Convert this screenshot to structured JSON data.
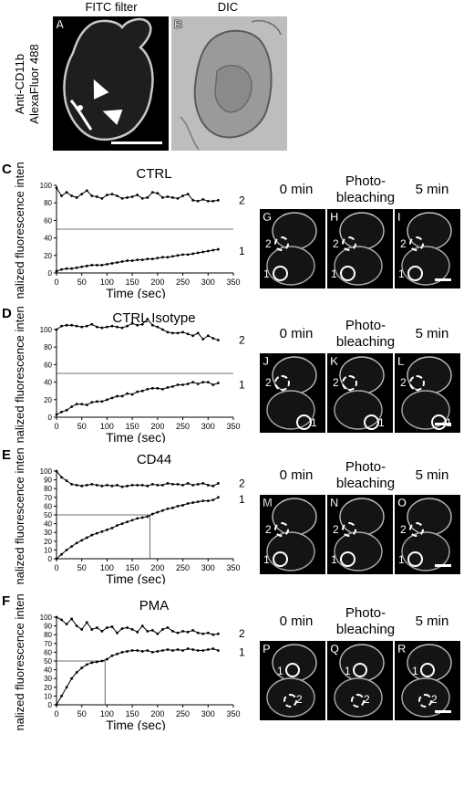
{
  "top": {
    "label_A": "A",
    "label_B": "B",
    "header_fitc": "FITC filter",
    "header_dic": "DIC",
    "side_label_line1": "Anti-CD11b",
    "side_label_line2": "AlexaFluor 488"
  },
  "headers": {
    "t0": "0 min",
    "pb_line1": "Photo-",
    "pb_line2": "bleaching",
    "t5": "5 min"
  },
  "roi_labels": {
    "one": "1",
    "two": "2"
  },
  "chart_data": [
    {
      "letter": "C",
      "type": "line",
      "title": "CTRL",
      "xlabel": "Time (sec)",
      "ylabel": "Normalized fluorescence intensity",
      "xlim": [
        0,
        350
      ],
      "ylim": [
        0,
        100
      ],
      "xticks": [
        0,
        50,
        100,
        150,
        200,
        250,
        300,
        350
      ],
      "yticks": [
        0,
        20,
        40,
        60,
        80,
        100
      ],
      "hline": 50,
      "vline": null,
      "series": [
        {
          "name": "2",
          "x": [
            0,
            10,
            20,
            30,
            40,
            50,
            60,
            70,
            80,
            90,
            100,
            110,
            120,
            130,
            140,
            150,
            160,
            170,
            180,
            190,
            200,
            210,
            220,
            230,
            240,
            250,
            260,
            270,
            280,
            290,
            300,
            310,
            320
          ],
          "values": [
            97,
            88,
            92,
            88,
            86,
            90,
            94,
            88,
            87,
            85,
            89,
            90,
            88,
            85,
            86,
            87,
            89,
            85,
            86,
            92,
            91,
            86,
            87,
            86,
            85,
            88,
            90,
            83,
            82,
            84,
            82,
            82,
            83
          ]
        },
        {
          "name": "1",
          "x": [
            0,
            10,
            20,
            30,
            40,
            50,
            60,
            70,
            80,
            90,
            100,
            110,
            120,
            130,
            140,
            150,
            160,
            170,
            180,
            190,
            200,
            210,
            220,
            230,
            240,
            250,
            260,
            270,
            280,
            290,
            300,
            310,
            320
          ],
          "values": [
            2,
            4,
            5,
            5,
            6,
            7,
            8,
            9,
            9,
            9,
            10,
            11,
            12,
            13,
            14,
            14,
            15,
            15,
            16,
            16,
            17,
            18,
            18,
            19,
            20,
            21,
            21,
            22,
            23,
            24,
            25,
            26,
            27
          ]
        }
      ]
    },
    {
      "letter": "D",
      "type": "line",
      "title": "CTRL Isotype",
      "xlabel": "Time (sec)",
      "ylabel": "Normalized fluorescence intensity",
      "xlim": [
        0,
        350
      ],
      "ylim": [
        0,
        100
      ],
      "xticks": [
        0,
        50,
        100,
        150,
        200,
        250,
        300,
        350
      ],
      "yticks": [
        0,
        20,
        40,
        60,
        80,
        100
      ],
      "hline": 50,
      "vline": null,
      "series": [
        {
          "name": "2",
          "x": [
            0,
            10,
            20,
            30,
            40,
            50,
            60,
            70,
            80,
            90,
            100,
            110,
            120,
            130,
            140,
            150,
            160,
            170,
            180,
            190,
            200,
            210,
            220,
            230,
            240,
            250,
            260,
            270,
            280,
            290,
            300,
            310,
            320
          ],
          "values": [
            100,
            104,
            105,
            105,
            104,
            103,
            104,
            106,
            103,
            102,
            103,
            104,
            103,
            102,
            104,
            107,
            105,
            106,
            112,
            105,
            103,
            100,
            97,
            96,
            96,
            97,
            95,
            93,
            96,
            89,
            93,
            90,
            88
          ]
        },
        {
          "name": "1",
          "x": [
            0,
            10,
            20,
            30,
            40,
            50,
            60,
            70,
            80,
            90,
            100,
            110,
            120,
            130,
            140,
            150,
            160,
            170,
            180,
            190,
            200,
            210,
            220,
            230,
            240,
            250,
            260,
            270,
            280,
            290,
            300,
            310,
            320
          ],
          "values": [
            3,
            6,
            8,
            12,
            15,
            15,
            14,
            17,
            18,
            18,
            20,
            22,
            24,
            24,
            27,
            26,
            29,
            30,
            32,
            33,
            33,
            32,
            34,
            35,
            37,
            37,
            38,
            40,
            38,
            40,
            40,
            37,
            39
          ]
        }
      ]
    },
    {
      "letter": "E",
      "type": "line",
      "title": "CD44",
      "xlabel": "Time (sec)",
      "ylabel": "Normalized fluorescence intensity",
      "xlim": [
        0,
        350
      ],
      "ylim": [
        0,
        100
      ],
      "xticks": [
        0,
        50,
        100,
        150,
        200,
        250,
        300,
        350
      ],
      "yticks": [
        0,
        10,
        20,
        30,
        40,
        50,
        60,
        70,
        80,
        90,
        100
      ],
      "hline": 50,
      "vline": 185,
      "series": [
        {
          "name": "2",
          "x": [
            0,
            10,
            20,
            30,
            40,
            50,
            60,
            70,
            80,
            90,
            100,
            110,
            120,
            130,
            140,
            150,
            160,
            170,
            180,
            190,
            200,
            210,
            220,
            230,
            240,
            250,
            260,
            270,
            280,
            290,
            300,
            310,
            320
          ],
          "values": [
            100,
            93,
            89,
            85,
            84,
            83,
            84,
            85,
            84,
            83,
            84,
            83,
            84,
            82,
            83,
            84,
            84,
            84,
            83,
            85,
            84,
            84,
            86,
            85,
            85,
            84,
            86,
            84,
            85,
            86,
            84,
            83,
            86
          ]
        },
        {
          "name": "1",
          "x": [
            0,
            10,
            20,
            30,
            40,
            50,
            60,
            70,
            80,
            90,
            100,
            110,
            120,
            130,
            140,
            150,
            160,
            170,
            180,
            190,
            200,
            210,
            220,
            230,
            240,
            250,
            260,
            270,
            280,
            290,
            300,
            310,
            320
          ],
          "values": [
            0,
            5,
            10,
            14,
            18,
            21,
            24,
            27,
            29,
            31,
            33,
            35,
            38,
            40,
            42,
            44,
            46,
            47,
            48,
            51,
            53,
            55,
            57,
            58,
            60,
            61,
            63,
            64,
            65,
            66,
            66,
            67,
            70
          ]
        }
      ]
    },
    {
      "letter": "F",
      "type": "line",
      "title": "PMA",
      "xlabel": "Time (sec)",
      "ylabel": "Normalized fluorescence intensity",
      "xlim": [
        0,
        350
      ],
      "ylim": [
        0,
        100
      ],
      "xticks": [
        0,
        50,
        100,
        150,
        200,
        250,
        300,
        350
      ],
      "yticks": [
        0,
        10,
        20,
        30,
        40,
        50,
        60,
        70,
        80,
        90,
        100
      ],
      "hline": 50,
      "vline": 96,
      "series": [
        {
          "name": "2",
          "x": [
            0,
            10,
            20,
            30,
            40,
            50,
            60,
            70,
            80,
            90,
            100,
            110,
            120,
            130,
            140,
            150,
            160,
            170,
            180,
            190,
            200,
            210,
            220,
            230,
            240,
            250,
            260,
            270,
            280,
            290,
            300,
            310,
            320
          ],
          "values": [
            100,
            97,
            92,
            98,
            90,
            86,
            94,
            86,
            88,
            84,
            88,
            89,
            82,
            87,
            88,
            86,
            83,
            90,
            84,
            85,
            81,
            86,
            88,
            84,
            82,
            84,
            83,
            85,
            82,
            81,
            82,
            80,
            81
          ]
        },
        {
          "name": "1",
          "x": [
            0,
            10,
            20,
            30,
            40,
            50,
            60,
            70,
            80,
            90,
            100,
            110,
            120,
            130,
            140,
            150,
            160,
            170,
            180,
            190,
            200,
            210,
            220,
            230,
            240,
            250,
            260,
            270,
            280,
            290,
            300,
            310,
            320
          ],
          "values": [
            0,
            10,
            20,
            30,
            37,
            42,
            46,
            48,
            49,
            50,
            52,
            56,
            58,
            60,
            61,
            62,
            62,
            61,
            62,
            60,
            61,
            62,
            63,
            62,
            63,
            62,
            64,
            63,
            62,
            62,
            63,
            64,
            62
          ]
        }
      ]
    }
  ]
}
